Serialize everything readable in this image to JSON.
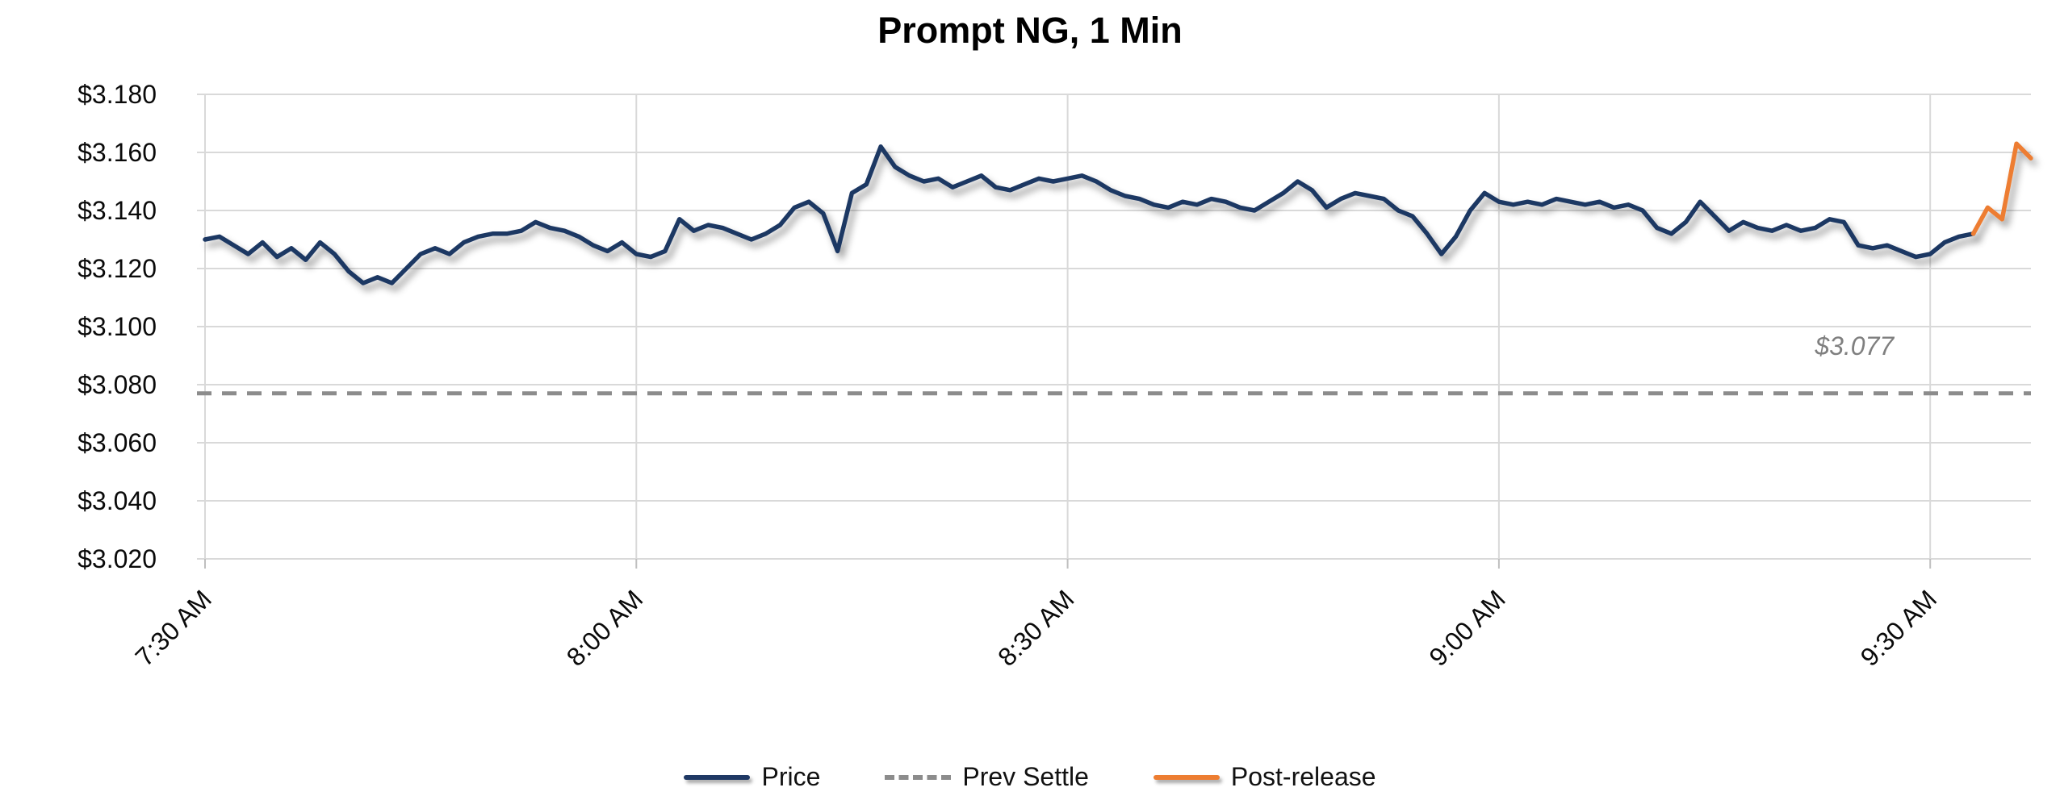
{
  "chart_data": {
    "type": "line",
    "title": "Prompt NG, 1 Min",
    "xlabel": "",
    "ylabel": "",
    "grid": true,
    "legend_position": "bottom",
    "ylim": [
      3.02,
      3.18
    ],
    "y_axis": {
      "ticks": [
        {
          "value": 3.02,
          "label": "$3.020"
        },
        {
          "value": 3.04,
          "label": "$3.040"
        },
        {
          "value": 3.06,
          "label": "$3.060"
        },
        {
          "value": 3.08,
          "label": "$3.080"
        },
        {
          "value": 3.1,
          "label": "$3.100"
        },
        {
          "value": 3.12,
          "label": "$3.120"
        },
        {
          "value": 3.14,
          "label": "$3.140"
        },
        {
          "value": 3.16,
          "label": "$3.160"
        },
        {
          "value": 3.18,
          "label": "$3.180"
        }
      ]
    },
    "x_axis": {
      "unit": "minutes since 7:30 AM, 1-minute bars",
      "ticks": [
        {
          "minute": 0,
          "label": "7:30 AM"
        },
        {
          "minute": 30,
          "label": "8:00 AM"
        },
        {
          "minute": 60,
          "label": "8:30 AM"
        },
        {
          "minute": 90,
          "label": "9:00 AM"
        },
        {
          "minute": 120,
          "label": "9:30 AM"
        }
      ]
    },
    "prev_settle": {
      "label": "Prev Settle",
      "value": 3.077,
      "annotation": "$3.077",
      "color": "#8c8c8c",
      "style": "dashed"
    },
    "series": [
      {
        "name": "Price",
        "color": "#1F3864",
        "start_minute": 0,
        "values": [
          3.13,
          3.131,
          3.128,
          3.125,
          3.129,
          3.124,
          3.127,
          3.123,
          3.129,
          3.125,
          3.119,
          3.115,
          3.117,
          3.115,
          3.12,
          3.125,
          3.127,
          3.125,
          3.129,
          3.131,
          3.132,
          3.132,
          3.133,
          3.136,
          3.134,
          3.133,
          3.131,
          3.128,
          3.126,
          3.129,
          3.125,
          3.124,
          3.126,
          3.137,
          3.133,
          3.135,
          3.134,
          3.132,
          3.13,
          3.132,
          3.135,
          3.141,
          3.143,
          3.139,
          3.126,
          3.146,
          3.149,
          3.162,
          3.155,
          3.152,
          3.15,
          3.151,
          3.148,
          3.15,
          3.152,
          3.148,
          3.147,
          3.149,
          3.151,
          3.15,
          3.151,
          3.152,
          3.15,
          3.147,
          3.145,
          3.144,
          3.142,
          3.141,
          3.143,
          3.142,
          3.144,
          3.143,
          3.141,
          3.14,
          3.143,
          3.146,
          3.15,
          3.147,
          3.141,
          3.144,
          3.146,
          3.145,
          3.144,
          3.14,
          3.138,
          3.132,
          3.125,
          3.131,
          3.14,
          3.146,
          3.143,
          3.142,
          3.143,
          3.142,
          3.144,
          3.143,
          3.142,
          3.143,
          3.141,
          3.142,
          3.14,
          3.134,
          3.132,
          3.136,
          3.143,
          3.138,
          3.133,
          3.136,
          3.134,
          3.133,
          3.135,
          3.133,
          3.134,
          3.137,
          3.136,
          3.128,
          3.127,
          3.128,
          3.126,
          3.124,
          3.125,
          3.129,
          3.131,
          3.132
        ]
      },
      {
        "name": "Post-release",
        "color": "#ED7D31",
        "start_minute": 123,
        "values": [
          3.132,
          3.141,
          3.137,
          3.163,
          3.158
        ]
      }
    ],
    "legend": [
      {
        "label": "Price",
        "color": "#1F3864",
        "style": "solid"
      },
      {
        "label": "Prev Settle",
        "color": "#8c8c8c",
        "style": "dashed"
      },
      {
        "label": "Post-release",
        "color": "#ED7D31",
        "style": "solid"
      }
    ]
  }
}
